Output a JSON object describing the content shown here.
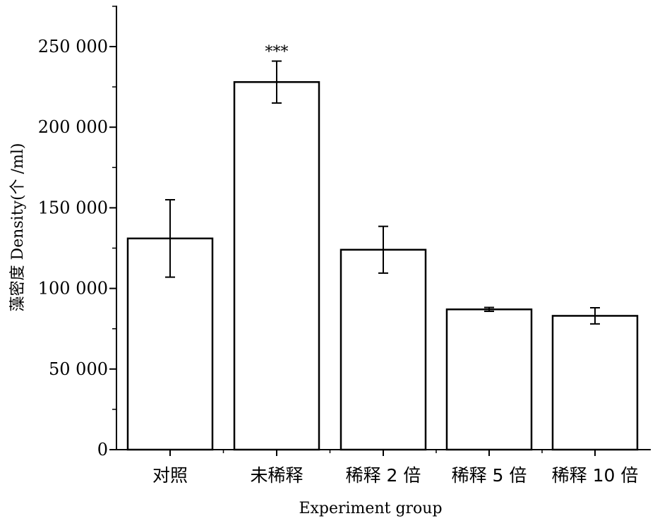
{
  "chart_data": {
    "type": "bar",
    "categories": [
      "对照",
      "未稀释",
      "稀释 2 倍",
      "稀释 5 倍",
      "稀释 10 倍"
    ],
    "values": [
      131000,
      228000,
      124000,
      87000,
      83000
    ],
    "errors": [
      24000,
      13000,
      14500,
      1200,
      5000
    ],
    "annotations": [
      {
        "category_index": 1,
        "text": "***"
      }
    ],
    "xlabel": "Experiment group",
    "ylabel": "藻密度 Density(个 /ml)",
    "ylim": [
      0,
      275000
    ],
    "yticks": [
      0,
      50000,
      100000,
      150000,
      200000,
      250000
    ],
    "ytick_labels": [
      "0",
      "50 000",
      "100 000",
      "150 000",
      "200 000",
      "250 000"
    ],
    "grid": false,
    "legend": "none",
    "bar_fill": "#ffffff",
    "bar_stroke": "#000000"
  }
}
